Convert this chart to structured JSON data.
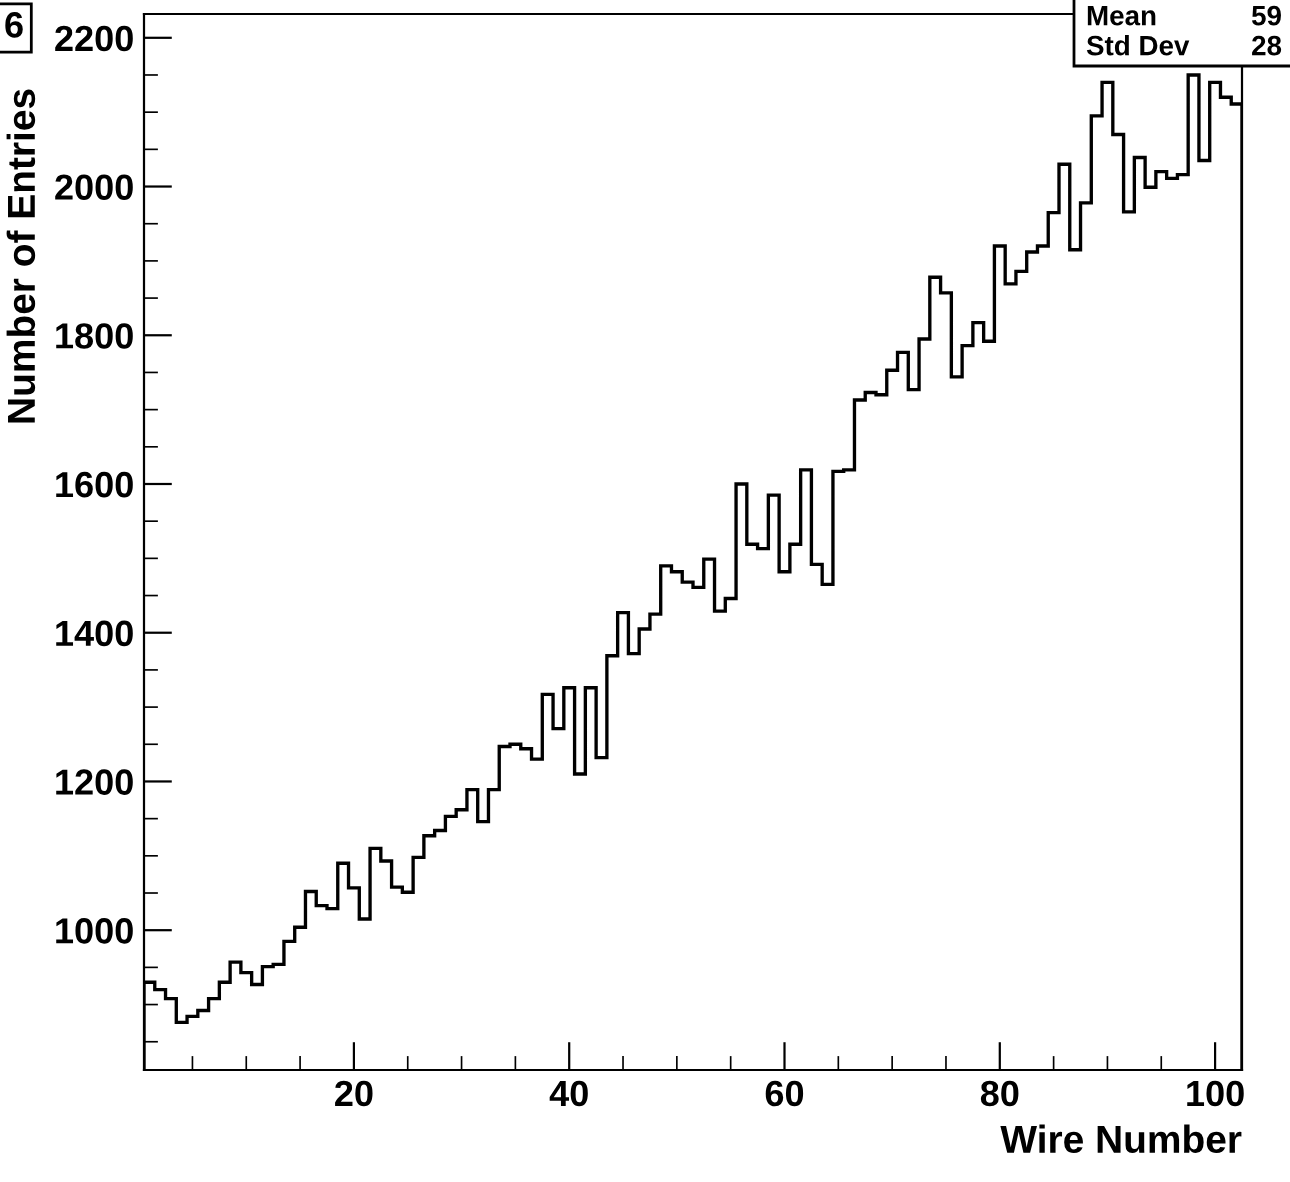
{
  "chart_data": {
    "type": "histogram",
    "xlabel": "Wire Number",
    "ylabel": "Number of Entries",
    "color": "#000000",
    "bins": [
      0.5,
      1.5,
      2.5,
      3.5,
      4.5,
      5.5,
      6.5,
      7.5,
      8.5,
      9.5,
      10.5,
      11.5,
      12.5,
      13.5,
      14.5,
      15.5,
      16.5,
      17.5,
      18.5,
      19.5,
      20.5,
      21.5,
      22.5,
      23.5,
      24.5,
      25.5,
      26.5,
      27.5,
      28.5,
      29.5,
      30.5,
      31.5,
      32.5,
      33.5,
      34.5,
      35.5,
      36.5,
      37.5,
      38.5,
      39.5,
      40.5,
      41.5,
      42.5,
      43.5,
      44.5,
      45.5,
      46.5,
      47.5,
      48.5,
      49.5,
      50.5,
      51.5,
      52.5,
      53.5,
      54.5,
      55.5,
      56.5,
      57.5,
      58.5,
      59.5,
      60.5,
      61.5,
      62.5,
      63.5,
      64.5,
      65.5,
      66.5,
      67.5,
      68.5,
      69.5,
      70.5,
      71.5,
      72.5,
      73.5,
      74.5,
      75.5,
      76.5,
      77.5,
      78.5,
      79.5,
      80.5,
      81.5,
      82.5,
      83.5,
      84.5,
      85.5,
      86.5,
      87.5,
      88.5,
      89.5,
      90.5,
      91.5,
      92.5,
      93.5,
      94.5,
      95.5,
      96.5,
      97.5,
      98.5,
      99.5,
      100.5,
      101.5,
      102.5
    ],
    "values": [
      930,
      920,
      908,
      876,
      884,
      892,
      908,
      930,
      957,
      943,
      927,
      951,
      954,
      985,
      1004,
      1052,
      1033,
      1029,
      1090,
      1057,
      1015,
      1110,
      1093,
      1058,
      1051,
      1098,
      1127,
      1134,
      1153,
      1162,
      1189,
      1146,
      1189,
      1247,
      1250,
      1244,
      1230,
      1317,
      1271,
      1326,
      1210,
      1326,
      1232,
      1369,
      1427,
      1372,
      1405,
      1425,
      1490,
      1482,
      1468,
      1461,
      1499,
      1429,
      1446,
      1600,
      1519,
      1513,
      1585,
      1482,
      1519,
      1619,
      1492,
      1465,
      1617,
      1619,
      1713,
      1723,
      1720,
      1753,
      1777,
      1727,
      1795,
      1878,
      1857,
      1744,
      1786,
      1817,
      1792,
      1920,
      1869,
      1886,
      1912,
      1920,
      1965,
      2030,
      1915,
      1978,
      2095,
      2140,
      2070,
      1966,
      2039,
      1999,
      2020,
      2011,
      2016,
      2150,
      2035,
      2140,
      2120,
      2111
    ],
    "xlim": [
      0.5,
      102.5
    ],
    "ylim": [
      812,
      2232
    ],
    "xticks": [
      {
        "value": 5,
        "label": null
      },
      {
        "value": 10,
        "label": null
      },
      {
        "value": 15,
        "label": null
      },
      20,
      {
        "value": 25,
        "label": null
      },
      {
        "value": 30,
        "label": null
      },
      {
        "value": 35,
        "label": null
      },
      40,
      {
        "value": 45,
        "label": null
      },
      {
        "value": 50,
        "label": null
      },
      {
        "value": 55,
        "label": null
      },
      60,
      {
        "value": 65,
        "label": null
      },
      {
        "value": 70,
        "label": null
      },
      {
        "value": 75,
        "label": null
      },
      80,
      {
        "value": 85,
        "label": null
      },
      {
        "value": 90,
        "label": null
      },
      {
        "value": 95,
        "label": null
      },
      100
    ],
    "yticks": [
      {
        "value": 850,
        "label": null
      },
      {
        "value": 900,
        "label": null
      },
      {
        "value": 950,
        "label": null
      },
      1000,
      {
        "value": 1050,
        "label": null
      },
      {
        "value": 1100,
        "label": null
      },
      {
        "value": 1150,
        "label": null
      },
      1200,
      {
        "value": 1250,
        "label": null
      },
      {
        "value": 1300,
        "label": null
      },
      {
        "value": 1350,
        "label": null
      },
      1400,
      {
        "value": 1450,
        "label": null
      },
      {
        "value": 1500,
        "label": null
      },
      {
        "value": 1550,
        "label": null
      },
      1600,
      {
        "value": 1650,
        "label": null
      },
      {
        "value": 1700,
        "label": null
      },
      {
        "value": 1750,
        "label": null
      },
      1800,
      {
        "value": 1850,
        "label": null
      },
      {
        "value": 1900,
        "label": null
      },
      {
        "value": 1950,
        "label": null
      },
      2000,
      {
        "value": 2050,
        "label": null
      },
      {
        "value": 2100,
        "label": null
      },
      {
        "value": 2150,
        "label": null
      },
      2200
    ],
    "grid": false,
    "annotations": [
      "6",
      "Mean",
      "59",
      "Std Dev",
      "28"
    ]
  }
}
